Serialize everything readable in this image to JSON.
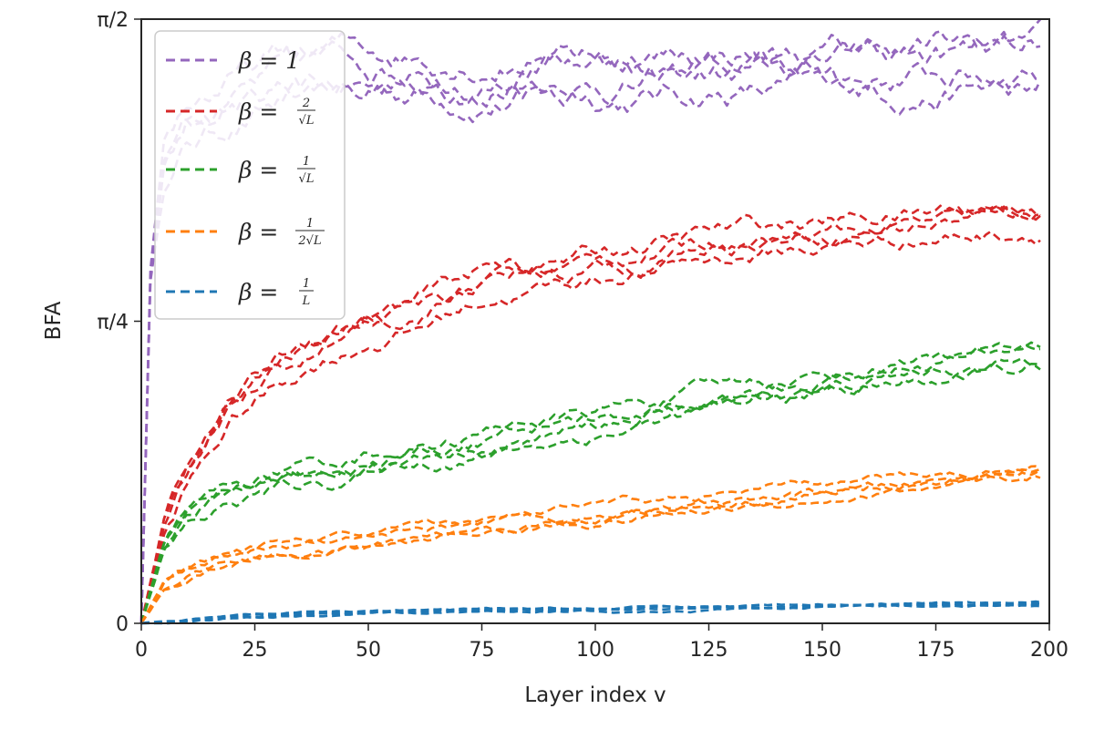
{
  "chart_data": {
    "type": "line",
    "xlabel": "Layer index v",
    "ylabel": "BFA",
    "xlim": [
      0,
      200
    ],
    "ylim": [
      0,
      1.5708
    ],
    "x_ticks": [
      {
        "value": 0,
        "label": "0"
      },
      {
        "value": 25,
        "label": "25"
      },
      {
        "value": 50,
        "label": "50"
      },
      {
        "value": 75,
        "label": "75"
      },
      {
        "value": 100,
        "label": "100"
      },
      {
        "value": 125,
        "label": "125"
      },
      {
        "value": 150,
        "label": "150"
      },
      {
        "value": 175,
        "label": "175"
      },
      {
        "value": 200,
        "label": "200"
      }
    ],
    "y_ticks": [
      {
        "value": 0,
        "label": "0"
      },
      {
        "value": 0.7854,
        "label": "π/4"
      },
      {
        "value": 1.5708,
        "label": "π/2"
      }
    ],
    "grid": false,
    "legend_position": "top-left",
    "line_style": "dashed",
    "runs_per_series": 4,
    "series": [
      {
        "name": "β = 1",
        "color": "#9467bd",
        "x": [
          0,
          2,
          5,
          10,
          20,
          30,
          45,
          60,
          75,
          90,
          110,
          130,
          150,
          170,
          198
        ],
        "values": [
          0.0,
          0.9,
          1.2,
          1.3,
          1.36,
          1.4,
          1.43,
          1.43,
          1.43,
          1.44,
          1.43,
          1.44,
          1.43,
          1.44,
          1.45
        ]
      },
      {
        "name": "β = 2/√L",
        "color": "#d62728",
        "x": [
          0,
          5,
          10,
          20,
          30,
          40,
          50,
          60,
          75,
          100,
          125,
          150,
          175,
          198
        ],
        "values": [
          0.0,
          0.25,
          0.38,
          0.55,
          0.65,
          0.72,
          0.77,
          0.8,
          0.88,
          0.93,
          0.98,
          1.01,
          1.04,
          1.06
        ]
      },
      {
        "name": "β = 1/√L",
        "color": "#2ca02c",
        "x": [
          0,
          5,
          10,
          20,
          30,
          40,
          50,
          60,
          75,
          100,
          125,
          150,
          175,
          198
        ],
        "values": [
          0.0,
          0.2,
          0.27,
          0.33,
          0.37,
          0.39,
          0.42,
          0.44,
          0.47,
          0.52,
          0.58,
          0.62,
          0.66,
          0.69
        ]
      },
      {
        "name": "β = 1/(2√L)",
        "color": "#ff7f0e",
        "x": [
          0,
          5,
          10,
          20,
          30,
          40,
          50,
          75,
          100,
          125,
          150,
          175,
          198
        ],
        "values": [
          0.0,
          0.1,
          0.13,
          0.17,
          0.19,
          0.2,
          0.21,
          0.25,
          0.28,
          0.31,
          0.34,
          0.37,
          0.39
        ]
      },
      {
        "name": "β = 1/L",
        "color": "#1f77b4",
        "x": [
          0,
          25,
          50,
          100,
          150,
          198
        ],
        "values": [
          0.0,
          0.02,
          0.03,
          0.035,
          0.045,
          0.05
        ]
      }
    ]
  }
}
